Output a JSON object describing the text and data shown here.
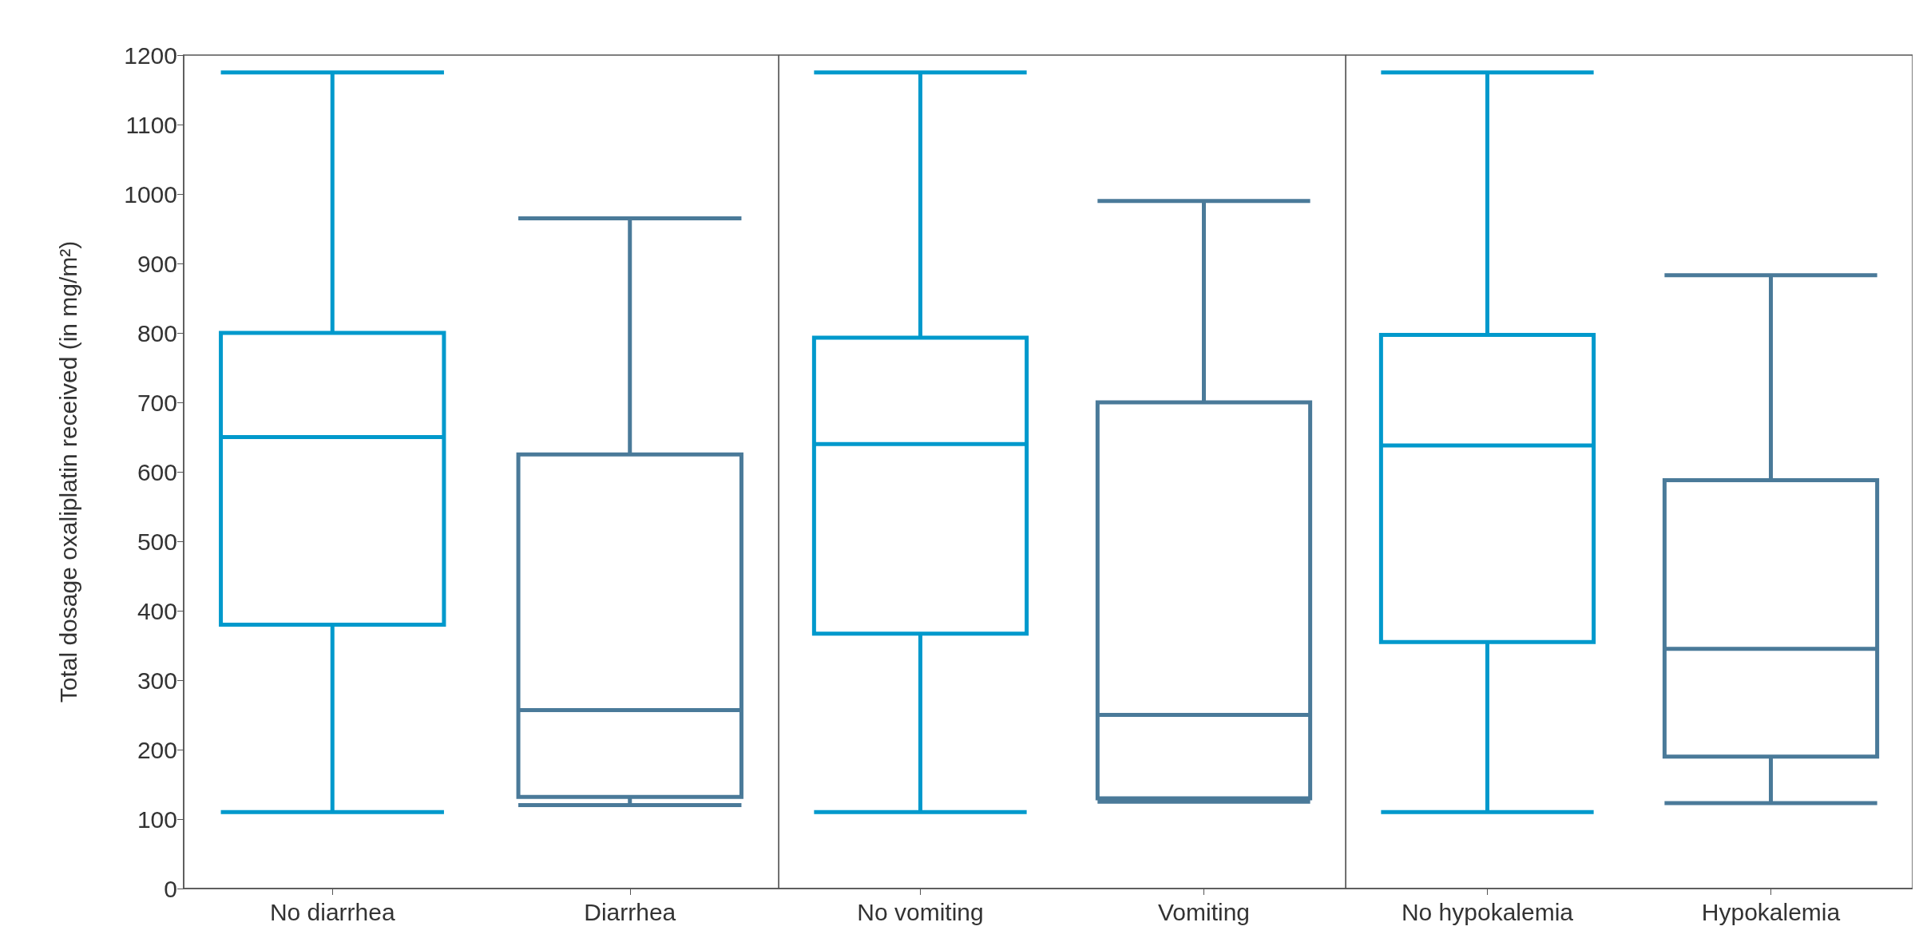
{
  "chart_data": [
    {
      "type": "box",
      "ylabel": "Total dosage oxaliplatin received (in mg/m²)",
      "categories": [
        "No diarrhea",
        "Diarrhea"
      ],
      "colors": [
        "#0099cc",
        "#4a7a99"
      ],
      "ylim": [
        0,
        1200
      ],
      "yticks": [
        0,
        100,
        200,
        300,
        400,
        500,
        600,
        700,
        800,
        900,
        1000,
        1100,
        1200
      ],
      "boxes": [
        {
          "low": 110,
          "q1": 380,
          "median": 650,
          "q3": 800,
          "high": 1175
        },
        {
          "low": 120,
          "q1": 132,
          "median": 257,
          "q3": 625,
          "high": 965
        }
      ]
    },
    {
      "type": "box",
      "categories": [
        "No vomiting",
        "Vomiting"
      ],
      "colors": [
        "#0099cc",
        "#4a7a99"
      ],
      "ylim": [
        0,
        1200
      ],
      "yticks": [
        0,
        100,
        200,
        300,
        400,
        500,
        600,
        700,
        800,
        900,
        1000,
        1100,
        1200
      ],
      "tick_labels": "x",
      "boxes": [
        {
          "low": 110,
          "q1": 367,
          "median": 640,
          "q3": 793,
          "high": 1175
        },
        {
          "low": 125,
          "q1": 130,
          "median": 250,
          "q3": 700,
          "high": 990
        }
      ]
    },
    {
      "type": "box",
      "categories": [
        "No hypokalemia",
        "Hypokalemia"
      ],
      "colors": [
        "#0099cc",
        "#4a7a99"
      ],
      "ylim": [
        0,
        1200
      ],
      "yticks": [
        0,
        100,
        200,
        300,
        400,
        500,
        600,
        700,
        800,
        900,
        1000,
        1100,
        1200
      ],
      "tick_labels": "x",
      "boxes": [
        {
          "low": 110,
          "q1": 355,
          "median": 638,
          "q3": 797,
          "high": 1175
        },
        {
          "low": 123,
          "q1": 190,
          "median": 345,
          "q3": 588,
          "high": 883
        }
      ]
    }
  ]
}
